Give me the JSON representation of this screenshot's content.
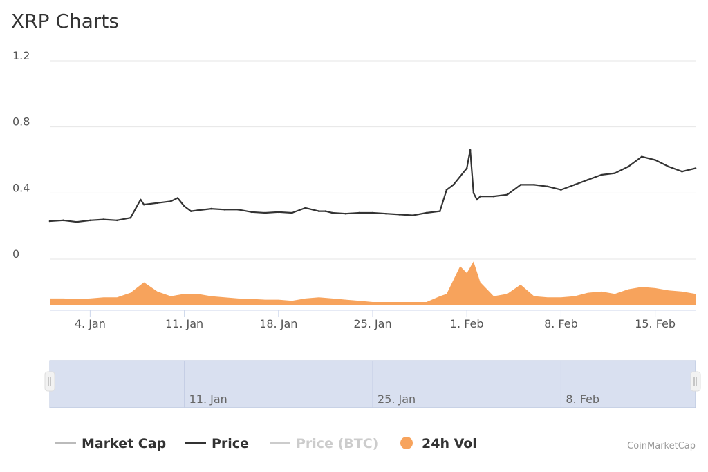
{
  "chart_data": {
    "type": "line",
    "title": "XRP Charts",
    "credit": "CoinMarketCap",
    "ylim": [
      0,
      1.2
    ],
    "y_ticks": [
      "1.2",
      "0.8",
      "0.4",
      "0"
    ],
    "x_range_days": [
      "2021-01-01",
      "2021-02-18"
    ],
    "x_ticks": [
      {
        "label": "4. Jan",
        "date": "2021-01-04"
      },
      {
        "label": "11. Jan",
        "date": "2021-01-11"
      },
      {
        "label": "18. Jan",
        "date": "2021-01-18"
      },
      {
        "label": "25. Jan",
        "date": "2021-01-25"
      },
      {
        "label": "1. Feb",
        "date": "2021-02-01"
      },
      {
        "label": "8. Feb",
        "date": "2021-02-08"
      },
      {
        "label": "15. Feb",
        "date": "2021-02-15"
      }
    ],
    "navigator_ticks": [
      {
        "label": "11. Jan",
        "date": "2021-01-11"
      },
      {
        "label": "25. Jan",
        "date": "2021-01-25"
      },
      {
        "label": "8. Feb",
        "date": "2021-02-08"
      }
    ],
    "grid": true,
    "legend_placement": "bottom",
    "series": [
      {
        "name": "Price",
        "color": "#333333",
        "x": [
          "2021-01-01",
          "2021-01-02",
          "2021-01-03",
          "2021-01-04",
          "2021-01-05",
          "2021-01-06",
          "2021-01-07",
          "2021-01-07T18:00",
          "2021-01-08",
          "2021-01-09",
          "2021-01-10",
          "2021-01-10T12:00",
          "2021-01-11",
          "2021-01-11T12:00",
          "2021-01-12",
          "2021-01-13",
          "2021-01-14",
          "2021-01-15",
          "2021-01-16",
          "2021-01-17",
          "2021-01-18",
          "2021-01-19",
          "2021-01-20",
          "2021-01-21",
          "2021-01-21T12:00",
          "2021-01-22",
          "2021-01-23",
          "2021-01-24",
          "2021-01-25",
          "2021-01-26",
          "2021-01-27",
          "2021-01-28",
          "2021-01-29",
          "2021-01-30",
          "2021-01-30T12:00",
          "2021-01-31",
          "2021-01-31T12:00",
          "2021-02-01",
          "2021-02-01T06:00",
          "2021-02-01T12:00",
          "2021-02-01T18:00",
          "2021-02-02",
          "2021-02-03",
          "2021-02-04",
          "2021-02-05",
          "2021-02-06",
          "2021-02-07",
          "2021-02-08",
          "2021-02-09",
          "2021-02-10",
          "2021-02-11",
          "2021-02-12",
          "2021-02-13",
          "2021-02-14",
          "2021-02-15",
          "2021-02-16",
          "2021-02-17",
          "2021-02-18"
        ],
        "values": [
          0.23,
          0.235,
          0.225,
          0.235,
          0.24,
          0.235,
          0.25,
          0.36,
          0.33,
          0.34,
          0.35,
          0.37,
          0.32,
          0.29,
          0.295,
          0.305,
          0.3,
          0.3,
          0.285,
          0.28,
          0.285,
          0.28,
          0.31,
          0.29,
          0.29,
          0.28,
          0.275,
          0.28,
          0.28,
          0.275,
          0.27,
          0.265,
          0.28,
          0.29,
          0.42,
          0.45,
          0.5,
          0.55,
          0.66,
          0.4,
          0.36,
          0.38,
          0.38,
          0.39,
          0.45,
          0.45,
          0.44,
          0.42,
          0.45,
          0.48,
          0.51,
          0.52,
          0.56,
          0.62,
          0.6,
          0.56,
          0.53,
          0.55
        ]
      },
      {
        "name": "24h Vol",
        "color": "#F7A35C",
        "x": [
          "2021-01-01",
          "2021-01-02",
          "2021-01-03",
          "2021-01-04",
          "2021-01-05",
          "2021-01-06",
          "2021-01-07",
          "2021-01-08",
          "2021-01-09",
          "2021-01-10",
          "2021-01-11",
          "2021-01-12",
          "2021-01-13",
          "2021-01-14",
          "2021-01-15",
          "2021-01-16",
          "2021-01-17",
          "2021-01-18",
          "2021-01-19",
          "2021-01-20",
          "2021-01-21",
          "2021-01-22",
          "2021-01-23",
          "2021-01-24",
          "2021-01-25",
          "2021-01-26",
          "2021-01-27",
          "2021-01-28",
          "2021-01-29",
          "2021-01-30",
          "2021-01-30T12:00",
          "2021-01-31",
          "2021-01-31T12:00",
          "2021-02-01",
          "2021-02-01T12:00",
          "2021-02-02",
          "2021-02-03",
          "2021-02-04",
          "2021-02-05",
          "2021-02-06",
          "2021-02-07",
          "2021-02-08",
          "2021-02-09",
          "2021-02-10",
          "2021-02-11",
          "2021-02-12",
          "2021-02-13",
          "2021-02-14",
          "2021-02-15",
          "2021-02-16",
          "2021-02-17",
          "2021-02-18"
        ],
        "values": [
          0.03,
          0.03,
          0.028,
          0.03,
          0.035,
          0.035,
          0.055,
          0.1,
          0.06,
          0.04,
          0.05,
          0.05,
          0.04,
          0.035,
          0.03,
          0.028,
          0.025,
          0.025,
          0.02,
          0.03,
          0.035,
          0.03,
          0.025,
          0.02,
          0.015,
          0.015,
          0.015,
          0.015,
          0.015,
          0.04,
          0.05,
          0.11,
          0.17,
          0.14,
          0.19,
          0.1,
          0.04,
          0.05,
          0.09,
          0.04,
          0.035,
          0.035,
          0.04,
          0.055,
          0.06,
          0.05,
          0.07,
          0.08,
          0.075,
          0.065,
          0.06,
          0.05
        ]
      }
    ]
  },
  "legend": {
    "items": [
      {
        "label": "Market Cap",
        "color": "#bbbbbb",
        "marker": "line",
        "state": "hidden",
        "text_color": "#333333"
      },
      {
        "label": "Price",
        "color": "#333333",
        "marker": "line",
        "state": "visible",
        "text_color": "#333333"
      },
      {
        "label": "Price (BTC)",
        "color": "#cccccc",
        "marker": "line",
        "state": "hidden",
        "text_color": "#cccccc"
      },
      {
        "label": "24h Vol",
        "color": "#F7A35C",
        "marker": "circle",
        "state": "visible",
        "text_color": "#333333"
      }
    ]
  }
}
